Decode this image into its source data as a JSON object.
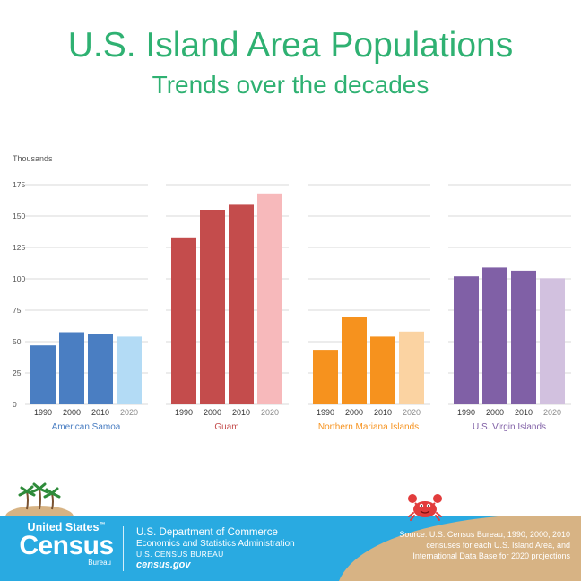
{
  "title": "U.S. Island Area Populations",
  "subtitle": "Trends over the decades",
  "colors": {
    "title": "#2fb172",
    "axis_text": "#555555",
    "grid": "#d9d9d9",
    "footer_bg": "#29aae1",
    "sand": "#d7b384"
  },
  "chart_data": {
    "type": "bar",
    "ylabel": "Thousands",
    "ylim": [
      0,
      175
    ],
    "yticks": [
      0,
      25,
      50,
      75,
      100,
      125,
      150,
      175
    ],
    "grid": true,
    "categories": [
      "1990",
      "2000",
      "2010",
      "2020"
    ],
    "panels": [
      {
        "name": "American Samoa",
        "values": [
          47,
          57.5,
          56,
          54
        ],
        "colors": [
          "#4a7ec2",
          "#4a7ec2",
          "#4a7ec2",
          "#b3dbf5"
        ],
        "label_color": "#4a7ec2"
      },
      {
        "name": "Guam",
        "values": [
          133,
          155,
          159,
          168
        ],
        "colors": [
          "#c44c4c",
          "#c44c4c",
          "#c44c4c",
          "#f7b9bb"
        ],
        "label_color": "#c44c4c"
      },
      {
        "name": "Northern Mariana Islands",
        "values": [
          43.5,
          69.5,
          54,
          58
        ],
        "colors": [
          "#f6921e",
          "#f6921e",
          "#f6921e",
          "#fbd3a2"
        ],
        "label_color": "#f6921e"
      },
      {
        "name": "U.S. Virgin Islands",
        "values": [
          102,
          109,
          106.5,
          100.5
        ],
        "colors": [
          "#8060a6",
          "#8060a6",
          "#8060a6",
          "#d2c1df"
        ],
        "label_color": "#8060a6"
      }
    ]
  },
  "footer": {
    "brand_top": "United States",
    "brand_tm": "™",
    "brand_big": "Census",
    "brand_bottom": "Bureau",
    "dept_line1": "U.S. Department of Commerce",
    "dept_line2": "Economics and Statistics Administration",
    "dept_line3": "U.S. CENSUS BUREAU",
    "dept_line4": "census.gov",
    "source_line1": "Source: U.S. Census Bureau, 1990, 2000, 2010",
    "source_line2": "censuses for each U.S. Island Area, and",
    "source_line3": "International Data Base for 2020 projections"
  },
  "decor": {
    "palm_island": "palm-island-icon",
    "crab": "crab-icon"
  }
}
